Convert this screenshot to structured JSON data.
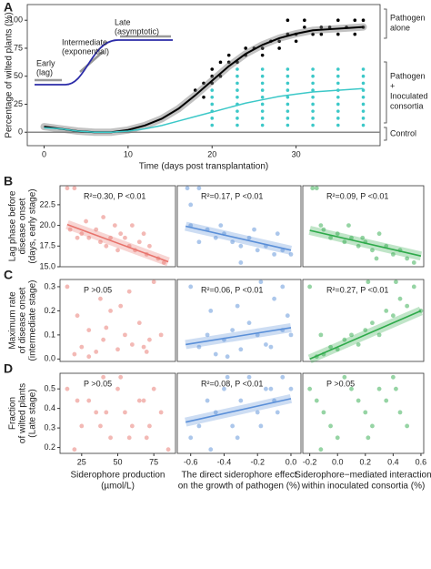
{
  "chart_data": [
    {
      "type": "line",
      "panel_label": "A",
      "xlabel": "Time (days post transplantation)",
      "ylabel": "Percentage of wilted plants (%)",
      "xlim": [
        -2,
        40
      ],
      "ylim": [
        -12,
        114
      ],
      "xticks": [
        0,
        10,
        20,
        30
      ],
      "yticks": [
        0,
        25,
        50,
        75,
        100
      ],
      "inset_labels": [
        [
          "Early",
          "(lag)"
        ],
        [
          "Intermediate",
          "(exponential)"
        ],
        [
          "Late",
          "(asymptotic)"
        ]
      ],
      "groups": [
        [
          "Pathogen",
          "alone"
        ],
        [
          "Pathogen",
          "+",
          "Inoculated",
          "consortia"
        ],
        [
          "Control"
        ]
      ],
      "series": [
        {
          "mode": "line",
          "color": "#888888",
          "x": [
            -2,
            40
          ],
          "values": [
            0,
            0
          ]
        },
        {
          "mode": "markers",
          "color": "#000000",
          "x": [
            18,
            19,
            20,
            20,
            21,
            21,
            22,
            22,
            23,
            24,
            24,
            25,
            26,
            26,
            27,
            28,
            28,
            29,
            30,
            30,
            31,
            32,
            33,
            33,
            34,
            35,
            35,
            36,
            37,
            37,
            38,
            38,
            29,
            31,
            20,
            19
          ],
          "values": [
            37.5,
            43.75,
            50,
            56.25,
            62.5,
            50,
            62.5,
            68.75,
            62.5,
            68.75,
            75,
            75,
            68.75,
            75,
            81.25,
            75,
            81.25,
            87.5,
            81.25,
            87.5,
            93.75,
            87.5,
            93.75,
            87.5,
            93.75,
            87.5,
            100,
            93.75,
            87.5,
            100,
            93.75,
            100,
            100,
            100,
            43.75,
            31.25
          ]
        },
        {
          "mode": "markers",
          "color": "#3cc8c8",
          "x": [
            20,
            20,
            20,
            20,
            20,
            20,
            23,
            23,
            23,
            23,
            23,
            23,
            23,
            23,
            23,
            26,
            26,
            26,
            26,
            26,
            26,
            26,
            26,
            26,
            29,
            29,
            29,
            29,
            29,
            29,
            29,
            29,
            29,
            32,
            32,
            32,
            32,
            32,
            32,
            32,
            32,
            32,
            35,
            35,
            35,
            35,
            35,
            35,
            35,
            35,
            35,
            38,
            38,
            38,
            38,
            38,
            38,
            38,
            38,
            38
          ],
          "values": [
            6.25,
            12.5,
            18.75,
            25,
            31.25,
            37.5,
            6.25,
            12.5,
            18.75,
            25,
            31.25,
            37.5,
            43.75,
            50,
            56.25,
            6.25,
            12.5,
            18.75,
            25,
            31.25,
            37.5,
            43.75,
            50,
            56.25,
            6.25,
            12.5,
            18.75,
            25,
            31.25,
            37.5,
            43.75,
            50,
            56.25,
            6.25,
            12.5,
            18.75,
            25,
            31.25,
            37.5,
            43.75,
            50,
            56.25,
            6.25,
            12.5,
            18.75,
            25,
            31.25,
            37.5,
            43.75,
            50,
            56.25,
            6.25,
            12.5,
            18.75,
            25,
            31.25,
            37.5,
            43.75,
            50,
            56.25
          ]
        },
        {
          "mode": "line",
          "color": "#000000",
          "band": true,
          "x": [
            0,
            2,
            4,
            6,
            8,
            10,
            12,
            14,
            16,
            18,
            20,
            22,
            24,
            26,
            28,
            30,
            32,
            34,
            36,
            38
          ],
          "values": [
            5,
            3,
            1,
            0,
            0,
            2,
            6,
            12,
            21,
            33,
            46,
            59,
            70,
            78,
            84,
            88,
            91,
            92,
            93,
            94
          ]
        },
        {
          "mode": "line",
          "color": "#3cc8c8",
          "x": [
            0,
            2,
            4,
            6,
            8,
            10,
            12,
            14,
            16,
            18,
            20,
            22,
            24,
            26,
            28,
            30,
            32,
            34,
            36,
            38
          ],
          "values": [
            4,
            3,
            1,
            0,
            0,
            1,
            3,
            6,
            10,
            14,
            18,
            22,
            26,
            29,
            32,
            34,
            36,
            37,
            38,
            39
          ]
        }
      ]
    },
    {
      "type": "scatter",
      "panel_label": "B",
      "ylabel": [
        "Lag phase before",
        "disease onset",
        "(days, early stage)"
      ],
      "annotation": "R²=0.30, P <0.01",
      "color": "#e8736c",
      "xlim": [
        10,
        90
      ],
      "ylim": [
        15,
        24.8
      ],
      "yticks": [
        {
          "value": 15,
          "label": "15.0"
        },
        17.5,
        {
          "value": 20,
          "label": "20.0"
        },
        22.5
      ],
      "x": [
        15,
        20,
        17,
        22,
        25,
        30,
        35,
        38,
        42,
        45,
        50,
        52,
        55,
        58,
        62,
        65,
        70,
        72,
        78,
        82,
        48,
        60,
        28,
        40,
        68
      ],
      "values": [
        24.5,
        24.5,
        19.5,
        18.5,
        19,
        18.5,
        19.5,
        18,
        17.5,
        18.5,
        17,
        19,
        18.5,
        17.5,
        17,
        18,
        16.5,
        17.5,
        16,
        15.5,
        20,
        20,
        20.5,
        21,
        19
      ],
      "fit": {
        "x": [
          15,
          85
        ],
        "values": [
          20.1,
          15.6
        ]
      }
    },
    {
      "type": "scatter",
      "annotation": "R²=0.17, P <0.01",
      "color": "#5a8fd8",
      "xlim": [
        -0.68,
        0.06
      ],
      "ylim": [
        15,
        24.8
      ],
      "x": [
        -0.62,
        -0.55,
        -0.6,
        -0.5,
        -0.45,
        -0.4,
        -0.35,
        -0.3,
        -0.25,
        -0.2,
        -0.15,
        -0.1,
        -0.05,
        0.0,
        -0.55,
        -0.42,
        -0.22,
        -0.08,
        -0.3,
        -0.6
      ],
      "values": [
        24.5,
        24.5,
        20,
        19.5,
        18.5,
        19,
        18,
        17.5,
        18.5,
        17,
        17.5,
        16.5,
        17,
        16.5,
        18,
        20,
        19.5,
        19,
        15.5,
        22.5
      ],
      "fit": {
        "x": [
          -0.63,
          0.0
        ],
        "values": [
          19.9,
          17.0
        ]
      }
    },
    {
      "type": "scatter",
      "annotation": "R²=0.09, P <0.01",
      "color": "#2eaa4a",
      "xlim": [
        -0.25,
        0.62
      ],
      "ylim": [
        15,
        24.8
      ],
      "x": [
        -0.18,
        -0.15,
        -0.1,
        -0.05,
        0.0,
        0.05,
        0.1,
        0.15,
        0.2,
        0.25,
        0.3,
        0.35,
        0.4,
        0.45,
        0.5,
        -0.12,
        0.08,
        0.18,
        0.28,
        0.55
      ],
      "values": [
        24.5,
        24.5,
        19.5,
        18.5,
        19,
        18,
        18.5,
        17.5,
        18,
        17,
        19,
        17.5,
        16.5,
        17,
        16,
        20,
        20,
        18.5,
        16,
        15.5
      ],
      "fit": {
        "x": [
          -0.2,
          0.6
        ],
        "values": [
          19.4,
          16.3
        ]
      }
    },
    {
      "type": "scatter",
      "panel_label": "C",
      "ylabel": [
        "Maximum rate",
        "of disease onset",
        "(intermediate stage)"
      ],
      "annotation": "P >0.05",
      "color": "#e8736c",
      "xlim": [
        10,
        90
      ],
      "ylim": [
        -0.01,
        0.33
      ],
      "yticks": [
        {
          "value": 0,
          "label": "0.0"
        },
        0.1,
        0.2,
        0.3
      ],
      "x": [
        15,
        20,
        25,
        30,
        35,
        40,
        45,
        50,
        55,
        60,
        65,
        70,
        75,
        80,
        22,
        38,
        52,
        68,
        42,
        58,
        72,
        30
      ],
      "values": [
        0.3,
        0.02,
        0.05,
        0.12,
        0.03,
        0.08,
        0.2,
        0.04,
        0.1,
        0.06,
        0.15,
        0.03,
        0.32,
        0.1,
        0.18,
        0.25,
        0.22,
        0.05,
        0.13,
        0.28,
        0.08,
        0.01
      ]
    },
    {
      "type": "scatter",
      "annotation": "R²=0.06, P <0.01",
      "color": "#5a8fd8",
      "xlim": [
        -0.68,
        0.06
      ],
      "ylim": [
        -0.01,
        0.33
      ],
      "x": [
        -0.6,
        -0.55,
        -0.5,
        -0.45,
        -0.4,
        -0.35,
        -0.3,
        -0.25,
        -0.2,
        -0.15,
        -0.1,
        -0.05,
        0.0,
        -0.48,
        -0.32,
        -0.18,
        -0.05,
        -0.38,
        -0.12,
        -0.02
      ],
      "values": [
        0.3,
        0.05,
        0.1,
        0.02,
        0.08,
        0.12,
        0.04,
        0.15,
        0.1,
        0.06,
        0.25,
        0.12,
        0.1,
        0.2,
        0.22,
        0.32,
        0.3,
        0.01,
        0.05,
        0.18
      ],
      "fit": {
        "x": [
          -0.63,
          0.0
        ],
        "values": [
          0.06,
          0.13
        ]
      }
    },
    {
      "type": "scatter",
      "annotation": "R²=0.27, P <0.01",
      "color": "#2eaa4a",
      "xlim": [
        -0.25,
        0.62
      ],
      "ylim": [
        -0.01,
        0.33
      ],
      "x": [
        -0.2,
        -0.15,
        -0.1,
        -0.05,
        0.0,
        0.05,
        0.1,
        0.15,
        0.2,
        0.25,
        0.3,
        0.35,
        0.4,
        0.45,
        0.5,
        0.55,
        0.6,
        -0.12,
        0.22,
        0.42
      ],
      "values": [
        0.3,
        0.01,
        0.02,
        0.05,
        0.04,
        0.08,
        0.1,
        0.06,
        0.12,
        0.15,
        0.1,
        0.2,
        0.18,
        0.25,
        0.22,
        0.3,
        0.2,
        0.1,
        0.32,
        0.32
      ],
      "fit": {
        "x": [
          -0.2,
          0.6
        ],
        "values": [
          0.0,
          0.2
        ]
      }
    },
    {
      "type": "scatter",
      "panel_label": "D",
      "ylabel": [
        "Fraction",
        "of wilted plants",
        "(Late stage)"
      ],
      "xlabel": [
        "Siderophore production",
        "(µmol/L)"
      ],
      "annotation": "P >0.05",
      "color": "#e8736c",
      "xlim": [
        10,
        90
      ],
      "ylim": [
        0.17,
        0.58
      ],
      "yticks": [
        0.2,
        0.3,
        0.4,
        0.5
      ],
      "xticks": [
        25,
        50,
        75
      ],
      "x": [
        15,
        20,
        25,
        30,
        35,
        40,
        45,
        50,
        55,
        60,
        65,
        70,
        75,
        80,
        85,
        22,
        38,
        52,
        68,
        42,
        58,
        72
      ],
      "values": [
        0.5,
        0.19,
        0.31,
        0.44,
        0.38,
        0.56,
        0.25,
        0.5,
        0.38,
        0.31,
        0.44,
        0.25,
        0.5,
        0.38,
        0.19,
        0.44,
        0.31,
        0.56,
        0.44,
        0.38,
        0.25,
        0.31
      ]
    },
    {
      "type": "scatter",
      "xlabel": [
        "The direct siderophore effect",
        "on the growth of pathogen (%)"
      ],
      "annotation": "R²=0.08, P <0.01",
      "color": "#5a8fd8",
      "xlim": [
        -0.68,
        0.06
      ],
      "ylim": [
        0.17,
        0.58
      ],
      "xticks": [
        -0.6,
        -0.4,
        -0.2,
        {
          "value": 0,
          "label": "0.0"
        }
      ],
      "x": [
        -0.6,
        -0.55,
        -0.5,
        -0.45,
        -0.4,
        -0.35,
        -0.3,
        -0.25,
        -0.2,
        -0.15,
        -0.1,
        -0.05,
        0.0,
        -0.48,
        -0.32,
        -0.18,
        -0.08,
        -0.38,
        -0.12
      ],
      "values": [
        0.25,
        0.31,
        0.44,
        0.38,
        0.5,
        0.31,
        0.44,
        0.56,
        0.38,
        0.5,
        0.44,
        0.56,
        0.5,
        0.19,
        0.25,
        0.31,
        0.38,
        0.56,
        0.5
      ],
      "fit": {
        "x": [
          -0.63,
          0.0
        ],
        "values": [
          0.33,
          0.45
        ]
      }
    },
    {
      "type": "scatter",
      "xlabel": [
        "Siderophore−mediated interaction",
        "within inoculated consortia (%)"
      ],
      "annotation": "P >0.05",
      "color": "#2eaa4a",
      "xlim": [
        -0.25,
        0.62
      ],
      "ylim": [
        0.17,
        0.58
      ],
      "xticks": [
        -0.2,
        {
          "value": 0,
          "label": "0.0"
        },
        0.2,
        0.4,
        0.6
      ],
      "x": [
        -0.2,
        -0.15,
        -0.1,
        -0.05,
        0.0,
        0.05,
        0.1,
        0.15,
        0.2,
        0.25,
        0.3,
        0.35,
        0.4,
        0.45,
        0.5,
        -0.12,
        0.22,
        0.42
      ],
      "values": [
        0.5,
        0.44,
        0.38,
        0.31,
        0.25,
        0.56,
        0.5,
        0.44,
        0.38,
        0.31,
        0.5,
        0.44,
        0.56,
        0.38,
        0.31,
        0.19,
        0.25,
        0.5
      ]
    }
  ]
}
